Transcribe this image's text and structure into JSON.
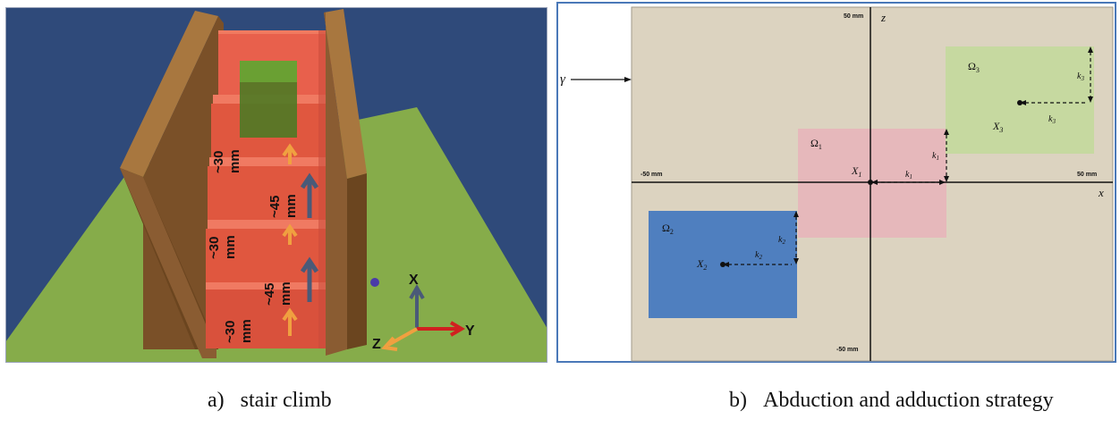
{
  "panel_a": {
    "captions": {
      "label": "a)",
      "title": "stair climb"
    },
    "step_labels": [
      {
        "tilde": "~30",
        "unit": "mm"
      },
      {
        "tilde": "~45",
        "unit": "mm"
      },
      {
        "tilde": "~30",
        "unit": "mm"
      },
      {
        "tilde": "~45",
        "unit": "mm"
      },
      {
        "tilde": "~30",
        "unit": "mm"
      }
    ],
    "axes": {
      "x": "X",
      "y": "Y",
      "z": "Z"
    },
    "colors": {
      "sky": "#2f4a7a",
      "ground": "#86ac4a",
      "wall": "#8a5c32",
      "step": "#e8604c",
      "step_dark": "#c94b3b",
      "block": "#5b8a2a",
      "arrow_orange": "#f0a040",
      "arrow_slate": "#4a5a78",
      "axis_red": "#d02020"
    }
  },
  "panel_b": {
    "captions": {
      "label": "b)",
      "title": "Abduction and adduction strategy"
    },
    "gamma": "γ",
    "axis_labels": {
      "x": "x",
      "z": "z",
      "x_min": "-50 mm",
      "x_max": "50 mm",
      "z_max": "50 mm",
      "z_min": "-50 mm"
    },
    "regions": [
      {
        "omega": "Ω",
        "sub": "1",
        "X": "X",
        "k": "k",
        "color": "#e6b8bb"
      },
      {
        "omega": "Ω",
        "sub": "2",
        "X": "X",
        "k": "k",
        "color": "#4f7fbf"
      },
      {
        "omega": "Ω",
        "sub": "3",
        "X": "X",
        "k": "k",
        "color": "#c6d9a0"
      }
    ],
    "colors": {
      "background": "#dcd3c0",
      "frame": "#4a78b8"
    }
  }
}
